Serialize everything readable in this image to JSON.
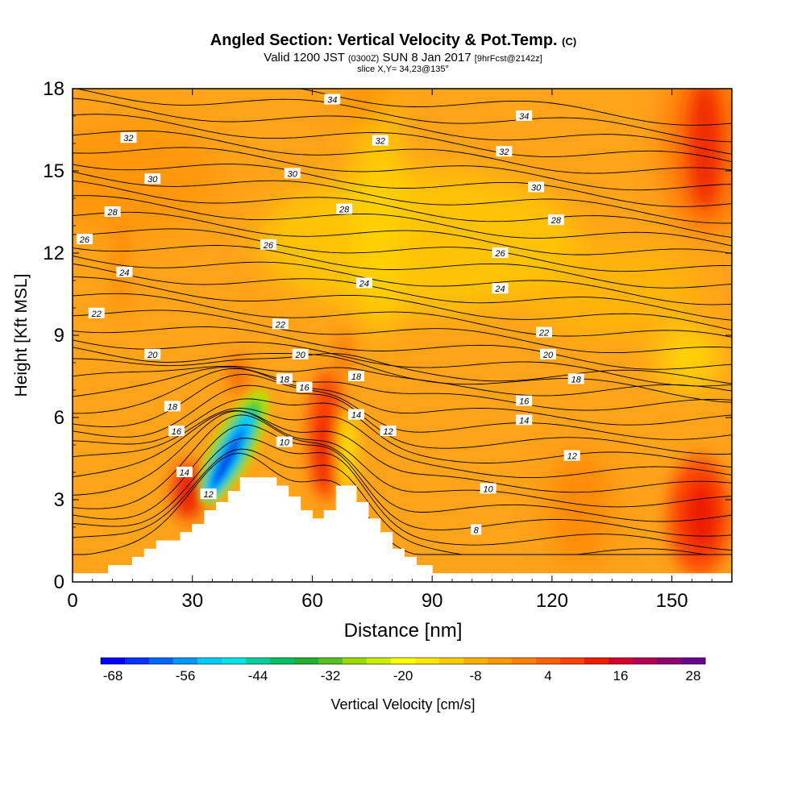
{
  "chart_data": {
    "type": "heatmap",
    "title": "Angled Section: Vertical Velocity & Pot.Temp.",
    "title_suffix": "(C)",
    "subtitle_parts": [
      "Valid 1200 JST",
      "(0300Z)",
      "SUN 8 Jan 2017",
      "[9hrFcst@2142z]"
    ],
    "subtitle2": "slice X,Y= 34,23@135°",
    "xlabel": "Distance [nm]",
    "ylabel": "Height [Kft MSL]",
    "xlim": [
      0,
      165
    ],
    "ylim": [
      0,
      18
    ],
    "xticks": [
      0,
      30,
      60,
      90,
      120,
      150
    ],
    "yticks": [
      0,
      3,
      6,
      9,
      12,
      15,
      18
    ],
    "colorbar": {
      "label": "Vertical Velocity [cm/s]",
      "tick_labels": [
        "-68",
        "-56",
        "-44",
        "-32",
        "-20",
        "-8",
        "4",
        "16",
        "28"
      ],
      "colors": [
        "#0000ff",
        "#0033ff",
        "#0066ff",
        "#0099ff",
        "#00ccff",
        "#00e5e5",
        "#00d0a0",
        "#00c060",
        "#22b030",
        "#55c020",
        "#99dd00",
        "#ccee00",
        "#ffff00",
        "#ffe600",
        "#ffcc00",
        "#ffb000",
        "#ff9900",
        "#ff7f00",
        "#ff6000",
        "#ff4000",
        "#ee1c00",
        "#d80030",
        "#b80050",
        "#900070",
        "#6a0090"
      ]
    },
    "isotherm_labels": [
      {
        "text": "34",
        "x": 65,
        "y": 17.6
      },
      {
        "text": "34",
        "x": 113,
        "y": 17.0
      },
      {
        "text": "32",
        "x": 14,
        "y": 16.2
      },
      {
        "text": "32",
        "x": 77,
        "y": 16.1
      },
      {
        "text": "32",
        "x": 108,
        "y": 15.7
      },
      {
        "text": "30",
        "x": 20,
        "y": 14.7
      },
      {
        "text": "30",
        "x": 55,
        "y": 14.9
      },
      {
        "text": "30",
        "x": 116,
        "y": 14.4
      },
      {
        "text": "28",
        "x": 10,
        "y": 13.5
      },
      {
        "text": "28",
        "x": 68,
        "y": 13.6
      },
      {
        "text": "28",
        "x": 121,
        "y": 13.2
      },
      {
        "text": "26",
        "x": 3,
        "y": 12.5
      },
      {
        "text": "26",
        "x": 49,
        "y": 12.3
      },
      {
        "text": "26",
        "x": 107,
        "y": 12.0
      },
      {
        "text": "24",
        "x": 13,
        "y": 11.3
      },
      {
        "text": "24",
        "x": 73,
        "y": 10.9
      },
      {
        "text": "24",
        "x": 107,
        "y": 10.7
      },
      {
        "text": "22",
        "x": 6,
        "y": 9.8
      },
      {
        "text": "22",
        "x": 52,
        "y": 9.4
      },
      {
        "text": "22",
        "x": 118,
        "y": 9.1
      },
      {
        "text": "20",
        "x": 20,
        "y": 8.3
      },
      {
        "text": "20",
        "x": 57,
        "y": 8.3
      },
      {
        "text": "20",
        "x": 119,
        "y": 8.3
      },
      {
        "text": "18",
        "x": 53,
        "y": 7.4
      },
      {
        "text": "18",
        "x": 71,
        "y": 7.5
      },
      {
        "text": "18",
        "x": 126,
        "y": 7.4
      },
      {
        "text": "18",
        "x": 25,
        "y": 6.4
      },
      {
        "text": "16",
        "x": 58,
        "y": 7.1
      },
      {
        "text": "16",
        "x": 113,
        "y": 6.6
      },
      {
        "text": "16",
        "x": 26,
        "y": 5.5
      },
      {
        "text": "14",
        "x": 71,
        "y": 6.1
      },
      {
        "text": "14",
        "x": 113,
        "y": 5.9
      },
      {
        "text": "12",
        "x": 79,
        "y": 5.5
      },
      {
        "text": "10",
        "x": 53,
        "y": 5.1
      },
      {
        "text": "12",
        "x": 125,
        "y": 4.6
      },
      {
        "text": "14",
        "x": 28,
        "y": 4.0
      },
      {
        "text": "12",
        "x": 34,
        "y": 3.2
      },
      {
        "text": "10",
        "x": 104,
        "y": 3.4
      },
      {
        "text": "8",
        "x": 101,
        "y": 1.9
      }
    ],
    "terrain_profile": [
      [
        0,
        0.3
      ],
      [
        9,
        0.3
      ],
      [
        9,
        0.6
      ],
      [
        15,
        0.6
      ],
      [
        15,
        0.9
      ],
      [
        18,
        0.9
      ],
      [
        18,
        1.2
      ],
      [
        21,
        1.2
      ],
      [
        21,
        1.5
      ],
      [
        27,
        1.5
      ],
      [
        27,
        1.8
      ],
      [
        30,
        1.8
      ],
      [
        30,
        2.1
      ],
      [
        33,
        2.1
      ],
      [
        33,
        2.6
      ],
      [
        36,
        2.6
      ],
      [
        36,
        2.9
      ],
      [
        39,
        2.9
      ],
      [
        39,
        3.3
      ],
      [
        42,
        3.3
      ],
      [
        42,
        3.8
      ],
      [
        51,
        3.8
      ],
      [
        51,
        3.5
      ],
      [
        54,
        3.5
      ],
      [
        54,
        3.1
      ],
      [
        57,
        3.1
      ],
      [
        57,
        2.6
      ],
      [
        60,
        2.6
      ],
      [
        60,
        2.3
      ],
      [
        63,
        2.3
      ],
      [
        63,
        2.6
      ],
      [
        66,
        2.6
      ],
      [
        66,
        3.5
      ],
      [
        71,
        3.5
      ],
      [
        71,
        2.9
      ],
      [
        74,
        2.9
      ],
      [
        74,
        2.3
      ],
      [
        77,
        2.3
      ],
      [
        77,
        1.8
      ],
      [
        80,
        1.8
      ],
      [
        80,
        1.2
      ],
      [
        83,
        1.2
      ],
      [
        83,
        0.9
      ],
      [
        86,
        0.9
      ],
      [
        86,
        0.6
      ],
      [
        90,
        0.6
      ],
      [
        90,
        0.3
      ],
      [
        165,
        0.3
      ]
    ]
  }
}
